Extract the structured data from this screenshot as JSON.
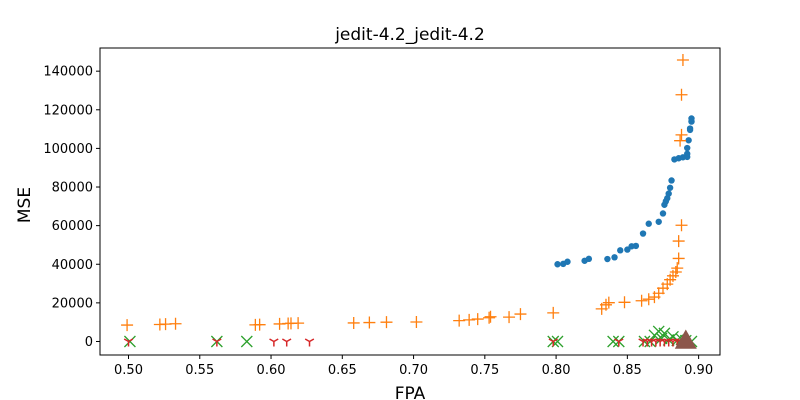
{
  "chart_data": {
    "type": "scatter",
    "title": "jedit-4.2_jedit-4.2",
    "xlabel": "FPA",
    "ylabel": "MSE",
    "xlim": [
      0.48,
      0.915
    ],
    "ylim": [
      -7000,
      152000
    ],
    "grid": false,
    "x_ticks": [
      "0.50",
      "0.55",
      "0.60",
      "0.65",
      "0.70",
      "0.75",
      "0.80",
      "0.85",
      "0.90"
    ],
    "y_ticks": [
      "0",
      "20000",
      "40000",
      "60000",
      "80000",
      "100000",
      "120000",
      "140000"
    ],
    "series": [
      {
        "marker": "circle",
        "color": "#1f77b4",
        "points": [
          [
            0.801,
            40000
          ],
          [
            0.805,
            40200
          ],
          [
            0.808,
            41300
          ],
          [
            0.82,
            41800
          ],
          [
            0.823,
            42800
          ],
          [
            0.836,
            42700
          ],
          [
            0.841,
            43600
          ],
          [
            0.845,
            47200
          ],
          [
            0.85,
            47600
          ],
          [
            0.853,
            49300
          ],
          [
            0.856,
            49500
          ],
          [
            0.861,
            55900
          ],
          [
            0.865,
            61000
          ],
          [
            0.872,
            62000
          ],
          [
            0.875,
            66300
          ],
          [
            0.876,
            70800
          ],
          [
            0.877,
            72600
          ],
          [
            0.878,
            74200
          ],
          [
            0.879,
            76600
          ],
          [
            0.88,
            79600
          ],
          [
            0.881,
            83400
          ],
          [
            0.883,
            94300
          ],
          [
            0.886,
            94900
          ],
          [
            0.889,
            95400
          ],
          [
            0.892,
            95600
          ],
          [
            0.892,
            97200
          ],
          [
            0.892,
            100200
          ],
          [
            0.893,
            104200
          ],
          [
            0.894,
            109600
          ],
          [
            0.894,
            110300
          ],
          [
            0.895,
            113900
          ],
          [
            0.895,
            115500
          ]
        ]
      },
      {
        "marker": "plus",
        "color": "#ff7f0e",
        "points": [
          [
            0.499,
            8500
          ],
          [
            0.522,
            8800
          ],
          [
            0.526,
            9000
          ],
          [
            0.533,
            9200
          ],
          [
            0.589,
            8600
          ],
          [
            0.592,
            8700
          ],
          [
            0.606,
            9100
          ],
          [
            0.612,
            9300
          ],
          [
            0.614,
            9400
          ],
          [
            0.619,
            9500
          ],
          [
            0.658,
            9600
          ],
          [
            0.669,
            9800
          ],
          [
            0.681,
            10000
          ],
          [
            0.702,
            10100
          ],
          [
            0.732,
            10800
          ],
          [
            0.739,
            11200
          ],
          [
            0.745,
            11600
          ],
          [
            0.753,
            12300
          ],
          [
            0.754,
            12800
          ],
          [
            0.767,
            12600
          ],
          [
            0.775,
            14200
          ],
          [
            0.798,
            14800
          ],
          [
            0.832,
            16900
          ],
          [
            0.835,
            19000
          ],
          [
            0.837,
            20100
          ],
          [
            0.848,
            20300
          ],
          [
            0.86,
            21100
          ],
          [
            0.865,
            21900
          ],
          [
            0.869,
            23000
          ],
          [
            0.872,
            25000
          ],
          [
            0.875,
            27600
          ],
          [
            0.878,
            29700
          ],
          [
            0.88,
            32000
          ],
          [
            0.882,
            34000
          ],
          [
            0.884,
            36000
          ],
          [
            0.885,
            38000
          ],
          [
            0.886,
            43000
          ],
          [
            0.886,
            52000
          ],
          [
            0.888,
            60200
          ],
          [
            0.887,
            104000
          ],
          [
            0.888,
            107000
          ],
          [
            0.888,
            127800
          ],
          [
            0.889,
            145800
          ]
        ]
      },
      {
        "marker": "x",
        "color": "#2ca02c",
        "points": [
          [
            0.501,
            0
          ],
          [
            0.562,
            0
          ],
          [
            0.583,
            0
          ],
          [
            0.798,
            0
          ],
          [
            0.801,
            0
          ],
          [
            0.84,
            0
          ],
          [
            0.844,
            0
          ],
          [
            0.862,
            0
          ],
          [
            0.866,
            0
          ],
          [
            0.869,
            3200
          ],
          [
            0.872,
            5200
          ],
          [
            0.874,
            1600
          ],
          [
            0.876,
            4200
          ],
          [
            0.879,
            800
          ],
          [
            0.882,
            2400
          ],
          [
            0.885,
            600
          ],
          [
            0.888,
            1200
          ],
          [
            0.891,
            400
          ],
          [
            0.895,
            0
          ]
        ]
      },
      {
        "marker": "tri_down",
        "color": "#d62728",
        "points": [
          [
            0.5,
            0
          ],
          [
            0.562,
            0
          ],
          [
            0.602,
            0
          ],
          [
            0.611,
            0
          ],
          [
            0.627,
            0
          ],
          [
            0.798,
            0
          ],
          [
            0.844,
            0
          ],
          [
            0.861,
            0
          ],
          [
            0.864,
            0
          ],
          [
            0.867,
            0
          ],
          [
            0.87,
            0
          ],
          [
            0.873,
            0
          ],
          [
            0.876,
            0
          ],
          [
            0.879,
            0
          ],
          [
            0.882,
            0
          ],
          [
            0.885,
            0
          ],
          [
            0.888,
            0
          ],
          [
            0.891,
            0
          ]
        ]
      },
      {
        "marker": "triangle",
        "color": "#8c564b",
        "points": [
          [
            0.891,
            500
          ]
        ]
      }
    ]
  }
}
